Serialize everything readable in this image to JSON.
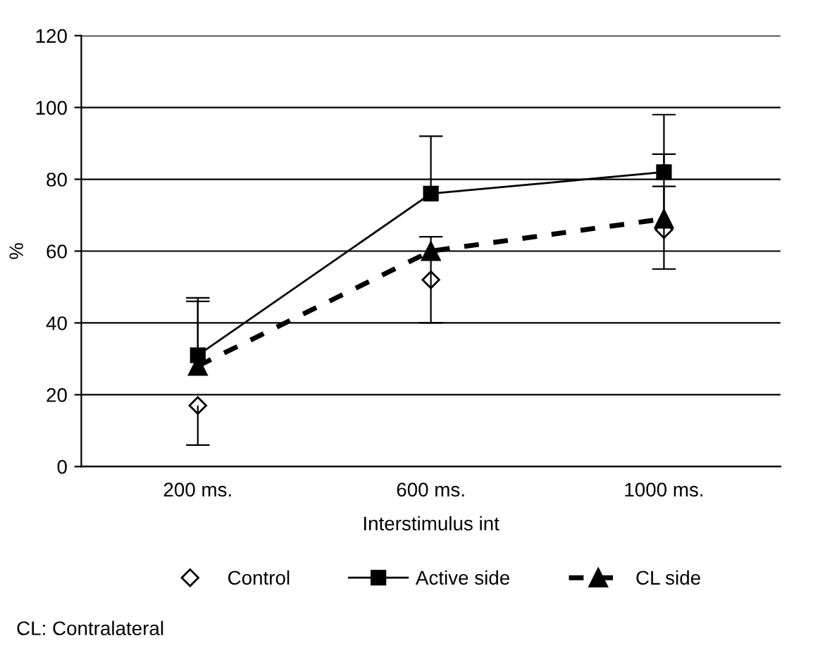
{
  "chart_data": {
    "type": "line",
    "xlabel": "Interstimulus int",
    "ylabel": "%",
    "categories": [
      "200 ms.",
      "600 ms.",
      "1000 ms."
    ],
    "series": [
      {
        "name": "Control",
        "type": "scatter",
        "color": "#000000",
        "marker": "diamond",
        "values": [
          17,
          52,
          66
        ],
        "errors": [
          [
            6,
            17
          ],
          [
            40,
            64
          ],
          [
            55,
            78
          ]
        ]
      },
      {
        "name": "Active side",
        "color": "#000000",
        "marker": "square",
        "line_style": "solid",
        "values": [
          31,
          76,
          82
        ],
        "errors": [
          [
            31,
            47
          ],
          [
            76,
            92
          ],
          [
            82,
            98
          ]
        ]
      },
      {
        "name": "CL side",
        "color": "#000000",
        "marker": "triangle",
        "line_style": "dashed",
        "values": [
          28,
          60,
          69
        ],
        "errors": [
          [
            28,
            46
          ],
          null,
          [
            69,
            87
          ]
        ]
      }
    ],
    "ylim": [
      0,
      120
    ],
    "yticks": [
      0,
      20,
      40,
      60,
      80,
      100,
      120
    ],
    "grid": "y",
    "legend": "bottom",
    "annotations": [
      "CL: Contralateral"
    ]
  }
}
